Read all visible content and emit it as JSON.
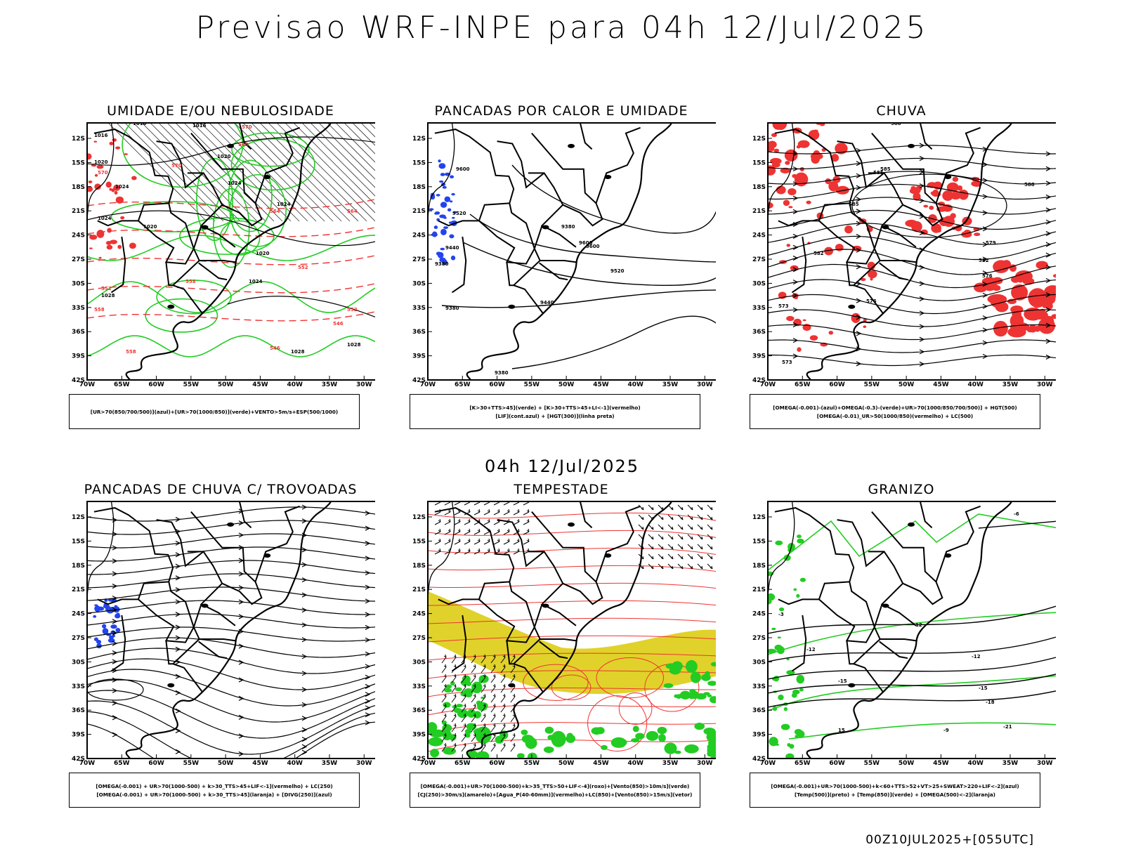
{
  "header": {
    "title": "Previsao WRF-INPE  para 04h 12/Jul/2025",
    "subtitle": "04h 12/Jul/2025",
    "footer": "00Z10JUL2025+[055UTC]"
  },
  "axes": {
    "lat_labels": [
      "12S",
      "15S",
      "18S",
      "21S",
      "24S",
      "27S",
      "30S",
      "33S",
      "36S",
      "39S",
      "42S"
    ],
    "lon_labels": [
      "70W",
      "65W",
      "60W",
      "55W",
      "50W",
      "45W",
      "40W",
      "35W",
      "30W"
    ]
  },
  "colors": {
    "green": "#22cc22",
    "red": "#ee3333",
    "blue": "#2244ee",
    "yellow": "#e0d22a",
    "black": "#000000"
  },
  "panels": [
    {
      "title": "UMIDADE E/OU NEBULOSIDADE",
      "legend": [
        "[UR>70(850/700/500)](azul)+[UR>70(1000/850)](verde)+VENTO>5m/s+ESP(500/1000)"
      ]
    },
    {
      "title": "PANCADAS POR CALOR E UMIDADE",
      "legend": [
        "[K>30+TTS>45](verde)  +  [K>30+TTS>45+LI<-1](vermelho)",
        "[LIF](cont.azul)  +  [HGT(300)](linha preta)"
      ]
    },
    {
      "title": "CHUVA",
      "legend": [
        "[OMEGA(-0.001)-(azul)+OMEGA(-0.3)-(verde)+UR>70(1000/850/700/500)]  +  HGT(500)",
        "[OMEGA(-0.01)_UR>50(1000/850)(vermelho)  +  LC(500)"
      ]
    },
    {
      "title": "PANCADAS DE CHUVA C/ TROVOADAS",
      "legend": [
        "[OMEGA(-0.001)  +  UR>70(1000-500)  +  k>30_TTS>45+LIF<-1](vermelho)  +  LC(250)",
        "[OMEGA(-0.001)  +  UR>70(1000-500)  +  k>30_TTS>45](laranja)  +  [DIVG(250)](azul)"
      ]
    },
    {
      "title": "TEMPESTADE",
      "legend": [
        "[OMEGA(-0.001)+UR>70(1000-500)+k>35_TTS>50+LIF<-4](roxo)+[Vento(850)>10m/s](verde)",
        "[CJ(250)>30m/s](amarelo)+[Agua_P(40-60mm)](vermelho)+LC(850)+[Vento(850)>15m/s](vetor)"
      ]
    },
    {
      "title": "GRANIZO",
      "legend": [
        "[OMEGA(-0.001)+UR>70(1000-500)+k<60+TTS>52+VT>25+SWEAT>220+LIF<-2](azul)",
        "[Temp(500)](preto)  +  [Temp(850)](verde)  +  [OMEGA(500)<-2](laranja)"
      ]
    }
  ],
  "contour_labels": {
    "p0": [
      "1016",
      "1016",
      "1016",
      "1020",
      "1020",
      "1020",
      "1024",
      "1024",
      "1024",
      "1024",
      "1024",
      "1028",
      "1028",
      "1028",
      "1020"
    ],
    "p0_red": [
      "570",
      "570",
      "570",
      "564",
      "564",
      "558",
      "558",
      "552",
      "552",
      "552",
      "546",
      "546",
      "540",
      "558"
    ],
    "p1": [
      "9600",
      "9520",
      "9440",
      "9380",
      "9380",
      "9600",
      "9600",
      "9520",
      "9440",
      "9380",
      "9380"
    ],
    "p2": [
      "588",
      "588",
      "585",
      "585",
      "582",
      "582",
      "579",
      "576",
      "576",
      "573",
      "573",
      "585"
    ],
    "p5": [
      "-12",
      "-12",
      "-15",
      "-15",
      "-18",
      "-21",
      "-6",
      "-9",
      "15",
      "12",
      "-3"
    ]
  }
}
